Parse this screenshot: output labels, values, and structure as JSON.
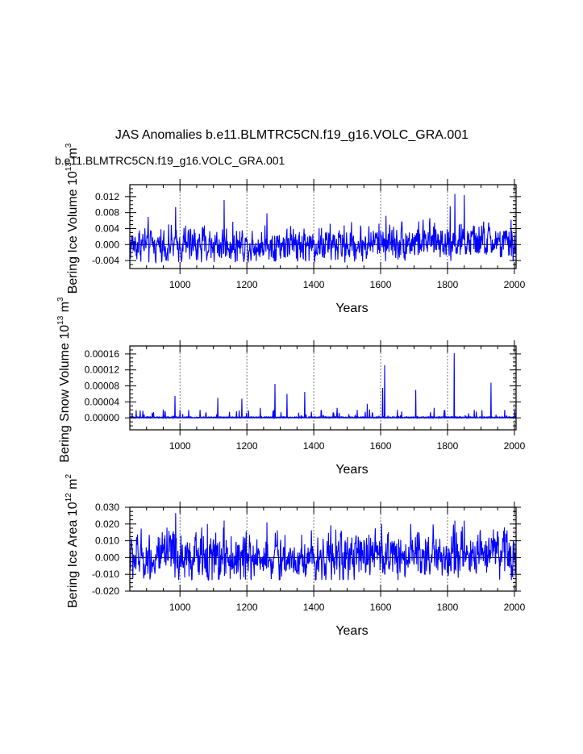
{
  "figure": {
    "title": "JAS Anomalies b.e11.BLMTRC5CN.f19_g16.VOLC_GRA.001",
    "subtitle": "b.e11.BLMTRC5CN.f19_g16.VOLC_GRA.001",
    "subtitle_color": "#0000ff",
    "series_color": "#0000ff"
  },
  "chart_data": [
    {
      "type": "line",
      "ylabel": "Bering Ice Volume 10",
      "ylabel_sup1": "13",
      "ylabel_unit": " m",
      "ylabel_sup2": "3",
      "xlabel": "Years",
      "xlim": [
        850,
        2005
      ],
      "ylim": [
        -0.006,
        0.015
      ],
      "xticks": [
        1000,
        1200,
        1400,
        1600,
        1800,
        2000
      ],
      "xtick_labels": [
        "1000",
        "1200",
        "1400",
        "1600",
        "1800",
        "2000"
      ],
      "yticks": [
        -0.004,
        0.0,
        0.004,
        0.008,
        0.012
      ],
      "ytick_labels": [
        "-0.004",
        "0.000",
        "0.004",
        "0.008",
        "0.012"
      ],
      "zero_line": true,
      "vertical_gridlines": true,
      "series": [
        {
          "name": "b.e11.BLMTRC5CN.f19_g16.VOLC_GRA.001",
          "mean": 0.0,
          "spread": 0.0021,
          "min": -0.0045,
          "max": 0.0135,
          "peaks": [
            [
              987,
              0.0094
            ],
            [
              1132,
              0.0112
            ],
            [
              1260,
              0.0078
            ],
            [
              1616,
              0.0072
            ],
            [
              1822,
              0.0127
            ],
            [
              1850,
              0.0124
            ],
            [
              1808,
              0.0096
            ],
            [
              1990,
              0.0062
            ]
          ]
        }
      ]
    },
    {
      "type": "line",
      "ylabel": "Bering Snow Volume 10",
      "ylabel_sup1": "13",
      "ylabel_unit": " m",
      "ylabel_sup2": "3",
      "xlabel": "Years",
      "xlim": [
        850,
        2005
      ],
      "ylim": [
        -3e-05,
        0.00018
      ],
      "xticks": [
        1000,
        1200,
        1400,
        1600,
        1800,
        2000
      ],
      "xtick_labels": [
        "1000",
        "1200",
        "1400",
        "1600",
        "1800",
        "2000"
      ],
      "yticks": [
        0.0,
        4e-05,
        8e-05,
        0.00012,
        0.00016
      ],
      "ytick_labels": [
        "0.00000",
        "0.00004",
        "0.00008",
        "0.00012",
        "0.00016"
      ],
      "zero_line": true,
      "vertical_gridlines": true,
      "series": [
        {
          "name": "b.e11.BLMTRC5CN.f19_g16.VOLC_GRA.001",
          "mean": 1.2e-06,
          "spread": 1.5e-06,
          "min": -2e-06,
          "max": 0.00017,
          "peaks": [
            [
              985,
              5.5e-05
            ],
            [
              1113,
              5e-05
            ],
            [
              1185,
              4.8e-05
            ],
            [
              1284,
              8.5e-05
            ],
            [
              1320,
              6e-05
            ],
            [
              1373,
              6.5e-05
            ],
            [
              1606,
              7.5e-05
            ],
            [
              1612,
              0.000132
            ],
            [
              1705,
              7e-05
            ],
            [
              1820,
              0.000162
            ],
            [
              1930,
              8.8e-05
            ],
            [
              1470,
              2.5e-05
            ],
            [
              1560,
              3.5e-05
            ],
            [
              1760,
              2.5e-05
            ],
            [
              1880,
              2e-05
            ],
            [
              1000,
              2e-05
            ],
            [
              1060,
              2e-05
            ],
            [
              1240,
              2.5e-05
            ],
            [
              1530,
              2e-05
            ],
            [
              1650,
              2e-05
            ]
          ]
        }
      ]
    },
    {
      "type": "line",
      "ylabel": "Bering Ice Area 10",
      "ylabel_sup1": "12",
      "ylabel_unit": " m",
      "ylabel_sup2": "2",
      "xlabel": "Years",
      "xlim": [
        850,
        2005
      ],
      "ylim": [
        -0.02,
        0.03
      ],
      "xticks": [
        1000,
        1200,
        1400,
        1600,
        1800,
        2000
      ],
      "xtick_labels": [
        "1000",
        "1200",
        "1400",
        "1600",
        "1800",
        "2000"
      ],
      "yticks": [
        -0.02,
        -0.01,
        0.0,
        0.01,
        0.02,
        0.03
      ],
      "ytick_labels": [
        "-0.020",
        "-0.010",
        "0.000",
        "0.010",
        "0.020",
        "0.030"
      ],
      "zero_line": true,
      "vertical_gridlines": true,
      "series": [
        {
          "name": "b.e11.BLMTRC5CN.f19_g16.VOLC_GRA.001",
          "mean": 0.0,
          "spread": 0.0065,
          "min": -0.0135,
          "max": 0.028,
          "peaks": [
            [
              987,
              0.0265
            ],
            [
              1082,
              0.02
            ],
            [
              1132,
              0.022
            ],
            [
              1260,
              0.021
            ],
            [
              1603,
              0.02
            ],
            [
              1690,
              0.02
            ],
            [
              1822,
              0.022
            ],
            [
              1850,
              0.022
            ],
            [
              1970,
              0.018
            ]
          ]
        }
      ]
    }
  ]
}
